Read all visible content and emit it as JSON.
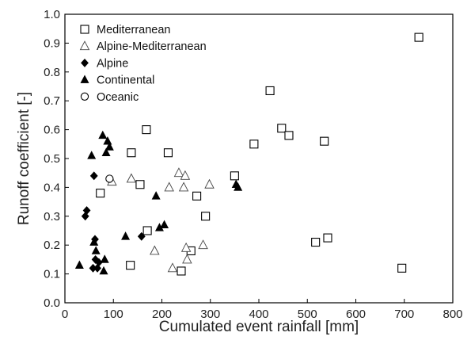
{
  "chart_data": {
    "type": "scatter",
    "title": "",
    "xlabel": "Cumulated event rainfall [mm]",
    "ylabel": "Runoff coefficient [-]",
    "xlim": [
      0,
      800
    ],
    "ylim": [
      0,
      1.0
    ],
    "x_ticks": [
      "0",
      "100",
      "200",
      "300",
      "400",
      "500",
      "600",
      "700",
      "800"
    ],
    "y_ticks": [
      "0.0",
      "0.1",
      "0.2",
      "0.3",
      "0.4",
      "0.5",
      "0.6",
      "0.7",
      "0.8",
      "0.9",
      "1.0"
    ],
    "grid": false,
    "legend_position": "top-left",
    "series": [
      {
        "name": "Mediterranean",
        "marker": "square-open",
        "points": [
          [
            73,
            0.38
          ],
          [
            135,
            0.13
          ],
          [
            137,
            0.52
          ],
          [
            155,
            0.41
          ],
          [
            170,
            0.25
          ],
          [
            168,
            0.6
          ],
          [
            213,
            0.52
          ],
          [
            240,
            0.11
          ],
          [
            260,
            0.18
          ],
          [
            272,
            0.37
          ],
          [
            290,
            0.3
          ],
          [
            350,
            0.44
          ],
          [
            390,
            0.55
          ],
          [
            423,
            0.735
          ],
          [
            447,
            0.605
          ],
          [
            462,
            0.58
          ],
          [
            517,
            0.21
          ],
          [
            535,
            0.56
          ],
          [
            542,
            0.225
          ],
          [
            695,
            0.12
          ],
          [
            730,
            0.92
          ]
        ]
      },
      {
        "name": "Alpine-Mediterranean",
        "marker": "triangle-open",
        "points": [
          [
            97,
            0.42
          ],
          [
            137,
            0.43
          ],
          [
            185,
            0.18
          ],
          [
            215,
            0.4
          ],
          [
            222,
            0.12
          ],
          [
            235,
            0.45
          ],
          [
            245,
            0.4
          ],
          [
            248,
            0.44
          ],
          [
            250,
            0.19
          ],
          [
            252,
            0.15
          ],
          [
            285,
            0.2
          ],
          [
            298,
            0.41
          ]
        ]
      },
      {
        "name": "Alpine",
        "marker": "diamond-filled",
        "points": [
          [
            42,
            0.3
          ],
          [
            45,
            0.32
          ],
          [
            58,
            0.12
          ],
          [
            60,
            0.44
          ],
          [
            62,
            0.22
          ],
          [
            63,
            0.15
          ],
          [
            67,
            0.12
          ],
          [
            70,
            0.14
          ],
          [
            158,
            0.23
          ]
        ]
      },
      {
        "name": "Continental",
        "marker": "triangle-filled",
        "points": [
          [
            30,
            0.13
          ],
          [
            55,
            0.51
          ],
          [
            60,
            0.21
          ],
          [
            64,
            0.18
          ],
          [
            78,
            0.58
          ],
          [
            80,
            0.11
          ],
          [
            82,
            0.15
          ],
          [
            85,
            0.52
          ],
          [
            88,
            0.56
          ],
          [
            92,
            0.54
          ],
          [
            125,
            0.23
          ],
          [
            188,
            0.37
          ],
          [
            195,
            0.26
          ],
          [
            205,
            0.27
          ],
          [
            353,
            0.41
          ],
          [
            357,
            0.4
          ]
        ]
      },
      {
        "name": "Oceanic",
        "marker": "circle-open",
        "points": [
          [
            92,
            0.43
          ]
        ]
      }
    ]
  }
}
